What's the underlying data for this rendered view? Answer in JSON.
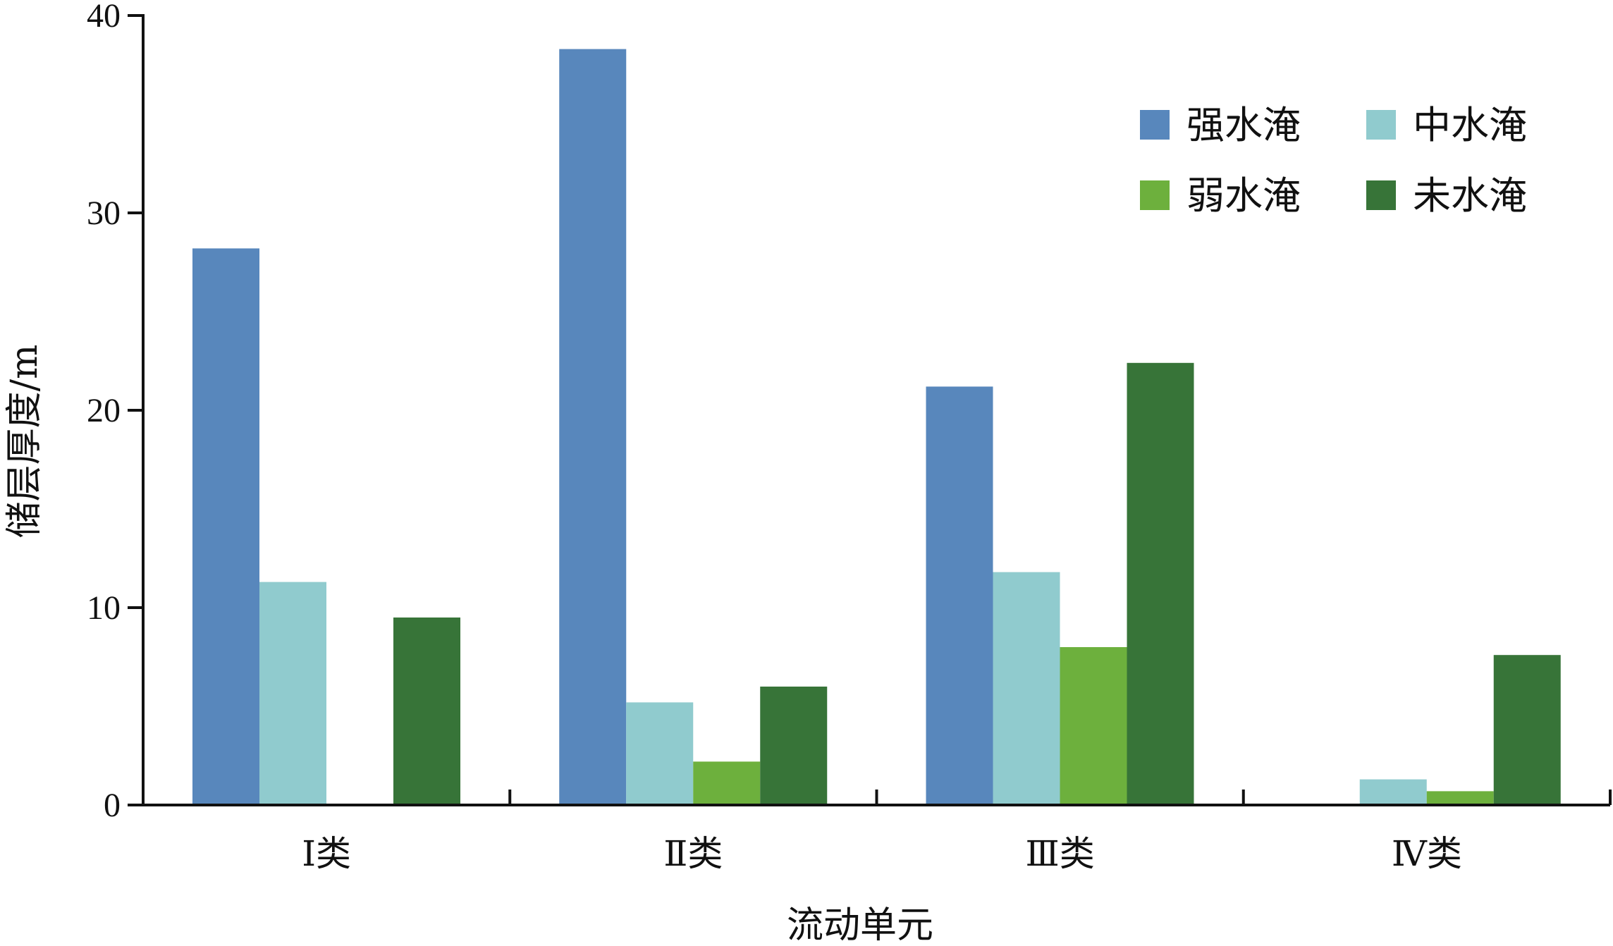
{
  "chart_data": {
    "type": "bar",
    "categories": [
      "Ⅰ类",
      "Ⅱ类",
      "Ⅲ类",
      "Ⅳ类"
    ],
    "series": [
      {
        "name": "强水淹",
        "color": "#5887BC",
        "values": [
          28.2,
          38.3,
          21.2,
          0
        ]
      },
      {
        "name": "中水淹",
        "color": "#90CBCE",
        "values": [
          11.3,
          5.2,
          11.8,
          1.3
        ]
      },
      {
        "name": "弱水淹",
        "color": "#6DB03D",
        "values": [
          0,
          2.2,
          8.0,
          0.7
        ]
      },
      {
        "name": "未水淹",
        "color": "#377438",
        "values": [
          9.5,
          6.0,
          22.4,
          7.6
        ]
      }
    ],
    "xlabel": "流动单元",
    "ylabel": "储层厚度/m",
    "ylim": [
      0,
      40
    ],
    "yticks": [
      0,
      10,
      20,
      30,
      40
    ],
    "legend_position": "top-right",
    "grid": false
  }
}
